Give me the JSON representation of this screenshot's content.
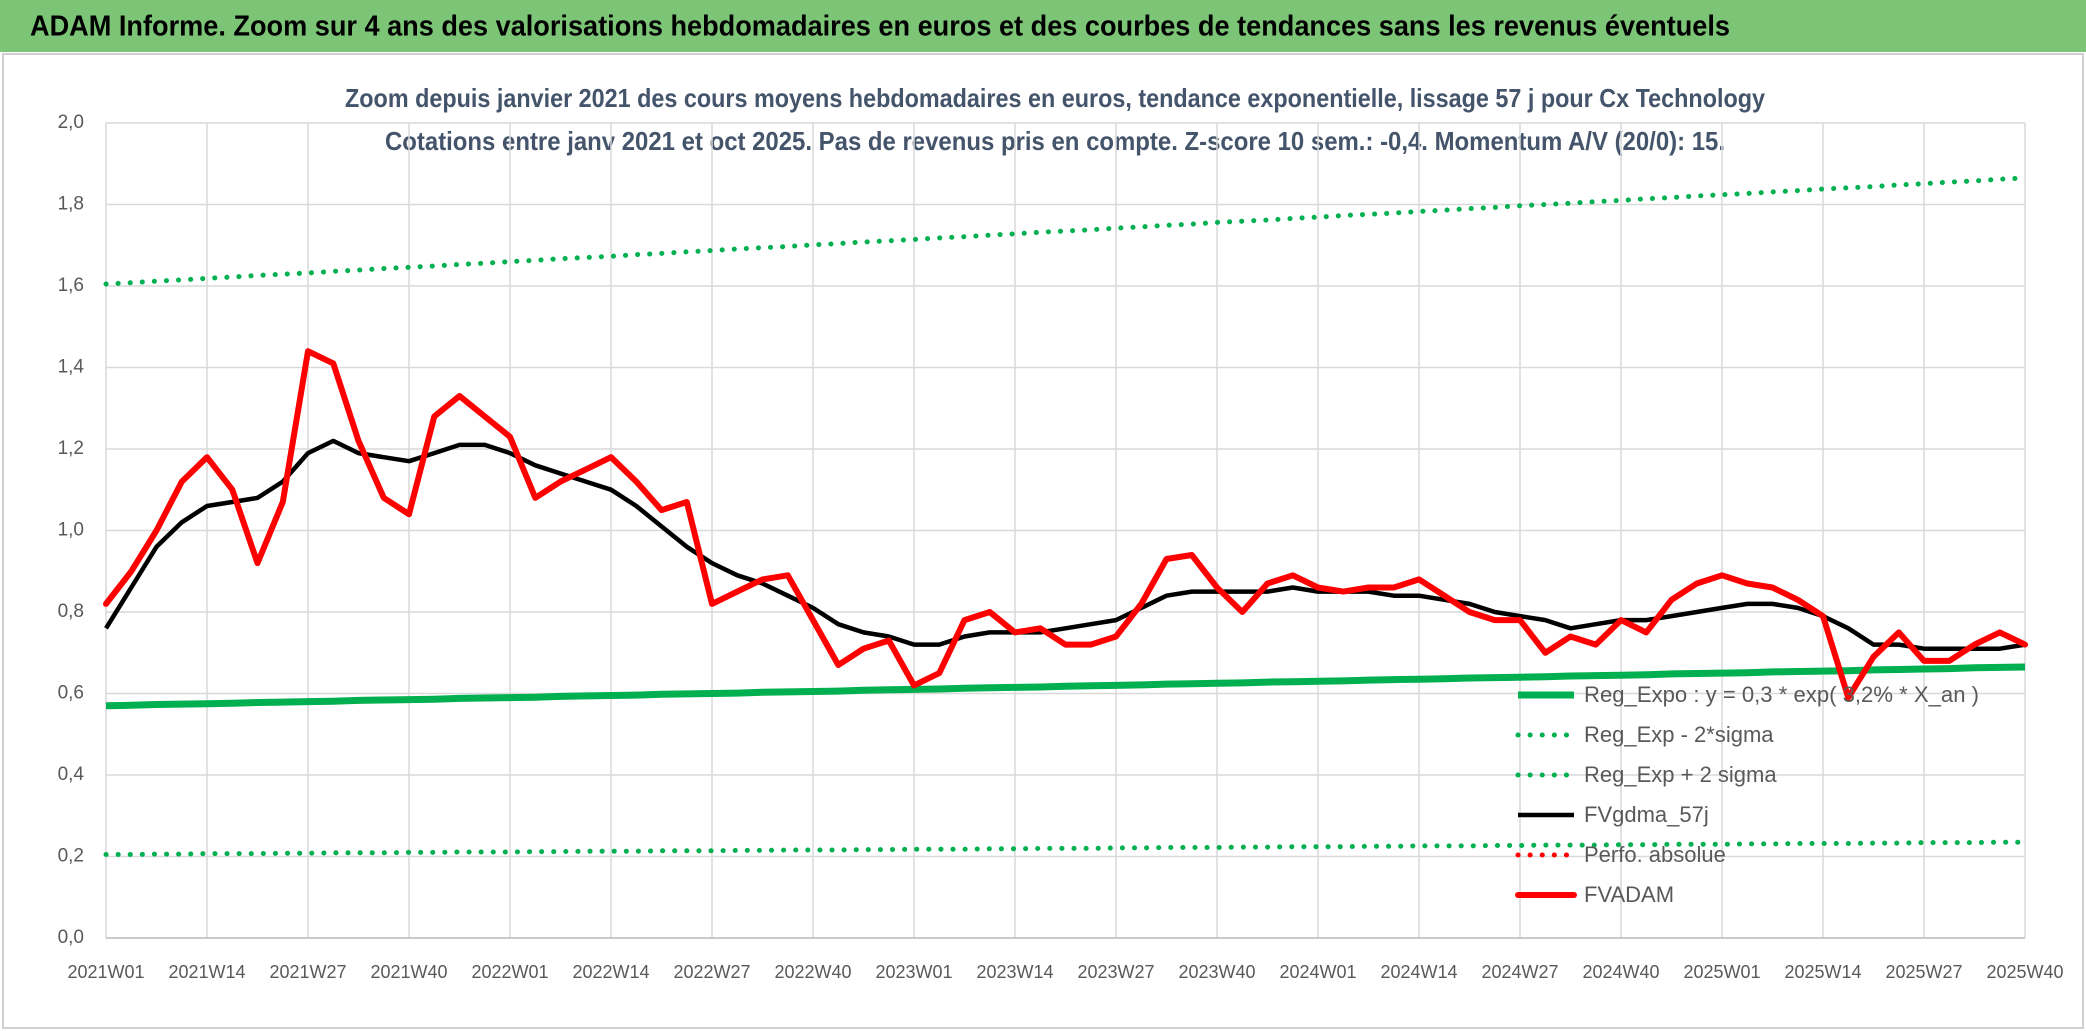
{
  "header": {
    "title": "ADAM Informe. Zoom sur 4 ans des valorisations hebdomadaires en euros et des courbes de tendances sans les revenus éventuels"
  },
  "chart_data": {
    "type": "line",
    "title": "Zoom depuis janvier 2021 des cours moyens hebdomadaires en euros, tendance exponentielle, lissage 57 j pour Cx Technology",
    "subtitle": "Cotations entre janv 2021 et oct 2025. Pas de revenus pris en compte. Z-score 10 sem.: -0,4. Momentum A/V (20/0): 15.",
    "categories": [
      "2021W01",
      null,
      null,
      null,
      "2021W14",
      null,
      null,
      null,
      "2021W27",
      null,
      null,
      null,
      "2021W40",
      null,
      null,
      null,
      "2022W01",
      null,
      null,
      null,
      "2022W14",
      null,
      null,
      null,
      "2022W27",
      null,
      null,
      null,
      "2022W40",
      null,
      null,
      null,
      "2023W01",
      null,
      null,
      null,
      "2023W14",
      null,
      null,
      null,
      "2023W27",
      null,
      null,
      null,
      "2023W40",
      null,
      null,
      null,
      "2024W01",
      null,
      null,
      null,
      "2024W14",
      null,
      null,
      null,
      "2024W27",
      null,
      null,
      null,
      "2024W40",
      null,
      null,
      null,
      "2025W01",
      null,
      null,
      null,
      "2025W14",
      null,
      null,
      null,
      "2025W27",
      null,
      null,
      null,
      "2025W40"
    ],
    "ylim": [
      0,
      2
    ],
    "yticks": [
      {
        "value": 0,
        "label": "0,0"
      },
      {
        "value": 0.2,
        "label": "0,2"
      },
      {
        "value": 0.4,
        "label": "0,4"
      },
      {
        "value": 0.6,
        "label": "0,6"
      },
      {
        "value": 0.8,
        "label": "0,8"
      },
      {
        "value": 1,
        "label": "1,0"
      },
      {
        "value": 1.2,
        "label": "1,2"
      },
      {
        "value": 1.4,
        "label": "1,4"
      },
      {
        "value": 1.6,
        "label": "1,6"
      },
      {
        "value": 1.8,
        "label": "1,8"
      },
      {
        "value": 2,
        "label": "2,0"
      }
    ],
    "grid": true,
    "legend": "bottom-right",
    "series": [
      {
        "name": "Reg_Expo : y = 0,3 * exp( 3,2% *  X_an )",
        "color": "#00b050",
        "style": "solid",
        "values": [
          0.57,
          0.571,
          0.573,
          0.574,
          0.575,
          0.576,
          0.578,
          0.579,
          0.58,
          0.581,
          0.583,
          0.584,
          0.585,
          0.586,
          0.588,
          0.589,
          0.59,
          0.591,
          0.593,
          0.594,
          0.595,
          0.596,
          0.598,
          0.599,
          0.6,
          0.601,
          0.603,
          0.604,
          0.605,
          0.606,
          0.608,
          0.609,
          0.61,
          0.611,
          0.613,
          0.614,
          0.615,
          0.616,
          0.618,
          0.619,
          0.62,
          0.621,
          0.623,
          0.624,
          0.625,
          0.626,
          0.628,
          0.629,
          0.63,
          0.631,
          0.633,
          0.634,
          0.635,
          0.636,
          0.638,
          0.639,
          0.64,
          0.641,
          0.643,
          0.644,
          0.645,
          0.646,
          0.648,
          0.649,
          0.65,
          0.651,
          0.653,
          0.654,
          0.655,
          0.656,
          0.658,
          0.659,
          0.66,
          0.661,
          0.663,
          0.664,
          0.665
        ]
      },
      {
        "name": "Reg_Exp - 2*sigma",
        "color": "#00b050",
        "style": "dotted",
        "values": [
          0.205,
          0.205,
          0.206,
          0.206,
          0.207,
          0.207,
          0.207,
          0.208,
          0.208,
          0.209,
          0.209,
          0.209,
          0.21,
          0.21,
          0.211,
          0.211,
          0.211,
          0.212,
          0.212,
          0.213,
          0.213,
          0.213,
          0.214,
          0.214,
          0.214,
          0.215,
          0.215,
          0.216,
          0.216,
          0.216,
          0.217,
          0.217,
          0.218,
          0.218,
          0.218,
          0.219,
          0.219,
          0.22,
          0.22,
          0.22,
          0.221,
          0.221,
          0.222,
          0.222,
          0.222,
          0.223,
          0.223,
          0.224,
          0.224,
          0.224,
          0.225,
          0.225,
          0.226,
          0.226,
          0.226,
          0.227,
          0.227,
          0.228,
          0.228,
          0.228,
          0.229,
          0.229,
          0.23,
          0.23,
          0.23,
          0.231,
          0.231,
          0.232,
          0.232,
          0.232,
          0.233,
          0.233,
          0.234,
          0.234,
          0.234,
          0.235,
          0.235
        ]
      },
      {
        "name": "Reg_Exp + 2 sigma",
        "color": "#00b050",
        "style": "dotted",
        "values": [
          1.605,
          1.608,
          1.612,
          1.615,
          1.619,
          1.622,
          1.626,
          1.629,
          1.632,
          1.636,
          1.639,
          1.643,
          1.646,
          1.649,
          1.653,
          1.656,
          1.66,
          1.663,
          1.667,
          1.67,
          1.673,
          1.677,
          1.68,
          1.684,
          1.687,
          1.691,
          1.694,
          1.697,
          1.701,
          1.704,
          1.708,
          1.711,
          1.714,
          1.718,
          1.721,
          1.725,
          1.728,
          1.732,
          1.735,
          1.738,
          1.742,
          1.745,
          1.749,
          1.752,
          1.756,
          1.759,
          1.762,
          1.766,
          1.769,
          1.773,
          1.776,
          1.779,
          1.783,
          1.786,
          1.79,
          1.793,
          1.797,
          1.8,
          1.803,
          1.807,
          1.81,
          1.814,
          1.817,
          1.821,
          1.824,
          1.827,
          1.831,
          1.834,
          1.838,
          1.841,
          1.844,
          1.848,
          1.851,
          1.855,
          1.858,
          1.862,
          1.865
        ]
      },
      {
        "name": "FVgdma_57j",
        "color": "#000000",
        "style": "solid",
        "values": [
          0.76,
          0.86,
          0.96,
          1.02,
          1.06,
          1.07,
          1.08,
          1.12,
          1.19,
          1.22,
          1.19,
          1.18,
          1.17,
          1.19,
          1.21,
          1.21,
          1.19,
          1.16,
          1.14,
          1.12,
          1.1,
          1.06,
          1.01,
          0.96,
          0.92,
          0.89,
          0.87,
          0.84,
          0.81,
          0.77,
          0.75,
          0.74,
          0.72,
          0.72,
          0.74,
          0.75,
          0.75,
          0.75,
          0.76,
          0.77,
          0.78,
          0.81,
          0.84,
          0.85,
          0.85,
          0.85,
          0.85,
          0.86,
          0.85,
          0.85,
          0.85,
          0.84,
          0.84,
          0.83,
          0.82,
          0.8,
          0.79,
          0.78,
          0.76,
          0.77,
          0.78,
          0.78,
          0.79,
          0.8,
          0.81,
          0.82,
          0.82,
          0.81,
          0.79,
          0.76,
          0.72,
          0.72,
          0.71,
          0.71,
          0.71,
          0.71,
          0.72
        ]
      },
      {
        "name": "Perfo. absolue",
        "color": "#ff0000",
        "style": "dotted",
        "values": [
          null,
          null,
          null,
          null,
          null,
          null,
          null,
          null,
          null,
          null,
          null,
          null,
          null,
          null,
          null,
          null,
          null,
          null,
          null,
          null,
          null,
          null,
          null,
          null,
          null,
          null,
          null,
          null,
          null,
          null,
          null,
          null,
          null,
          null,
          null,
          null,
          null,
          null,
          null,
          null,
          null,
          null,
          null,
          null,
          null,
          null,
          null,
          null,
          null,
          null,
          null,
          null,
          null,
          null,
          null,
          null,
          null,
          null,
          null,
          null,
          null,
          null,
          null,
          null,
          null,
          null,
          null,
          null,
          null,
          null,
          null,
          null,
          null,
          null,
          null,
          null,
          null
        ]
      },
      {
        "name": "FVADAM",
        "color": "#ff0000",
        "style": "thick",
        "values": [
          0.82,
          0.9,
          1.0,
          1.12,
          1.18,
          1.1,
          0.92,
          1.07,
          1.44,
          1.41,
          1.22,
          1.08,
          1.04,
          1.28,
          1.33,
          1.28,
          1.23,
          1.08,
          1.12,
          1.15,
          1.18,
          1.12,
          1.05,
          1.07,
          0.82,
          0.85,
          0.88,
          0.89,
          0.78,
          0.67,
          0.71,
          0.73,
          0.62,
          0.65,
          0.78,
          0.8,
          0.75,
          0.76,
          0.72,
          0.72,
          0.74,
          0.82,
          0.93,
          0.94,
          0.86,
          0.8,
          0.87,
          0.89,
          0.86,
          0.85,
          0.86,
          0.86,
          0.88,
          0.84,
          0.8,
          0.78,
          0.78,
          0.7,
          0.74,
          0.72,
          0.78,
          0.75,
          0.83,
          0.87,
          0.89,
          0.87,
          0.86,
          0.83,
          0.79,
          0.59,
          0.69,
          0.75,
          0.68,
          0.68,
          0.72,
          0.75,
          0.72
        ]
      }
    ]
  }
}
